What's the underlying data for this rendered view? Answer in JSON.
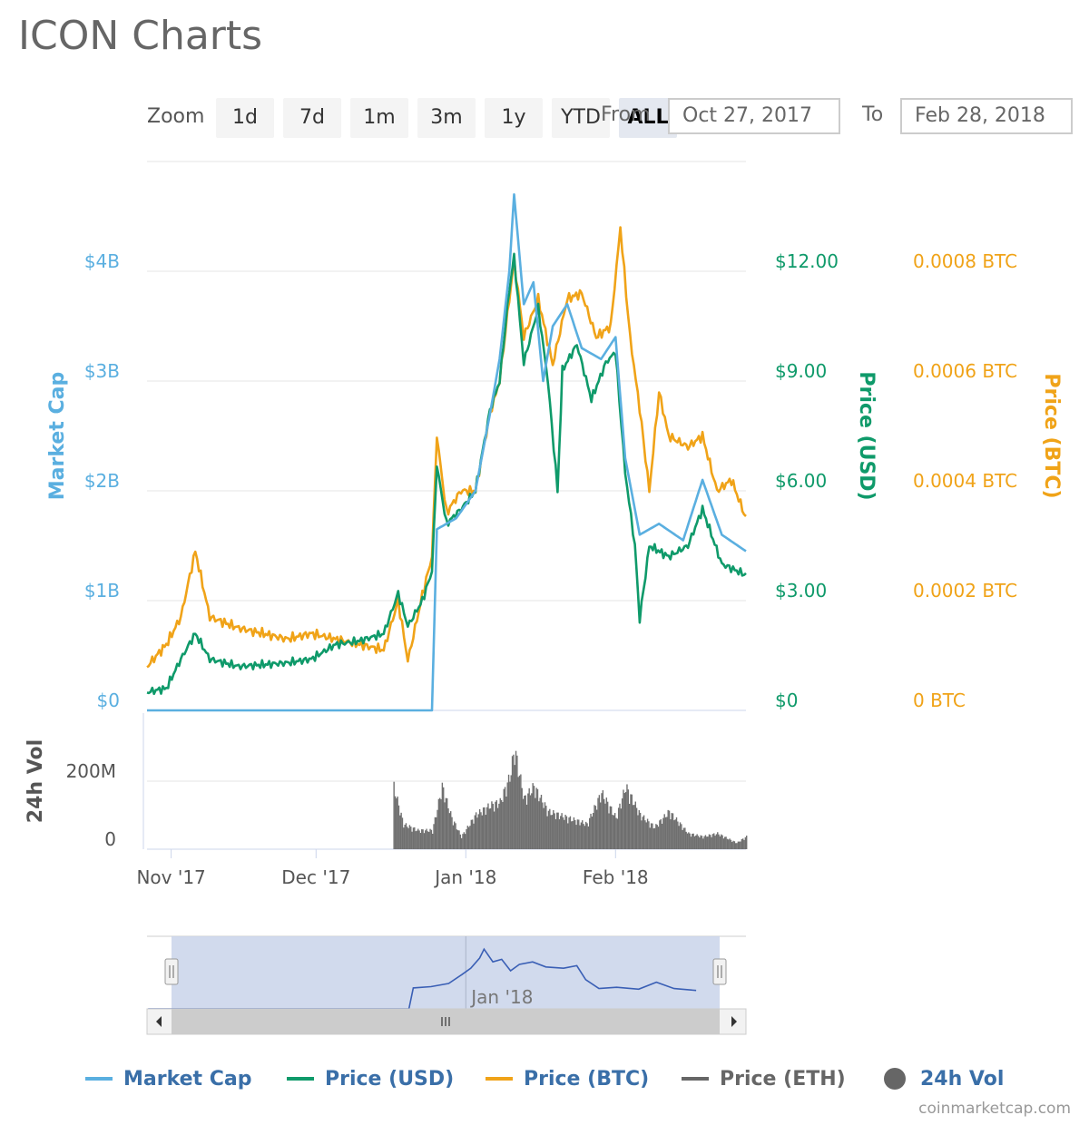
{
  "title": "ICON Charts",
  "zoom": {
    "label": "Zoom",
    "buttons": [
      "1d",
      "7d",
      "1m",
      "3m",
      "1y",
      "YTD",
      "ALL"
    ],
    "active": "ALL"
  },
  "range": {
    "from_label": "From",
    "to_label": "To",
    "from_value": "Oct 27, 2017",
    "to_value": "Feb 28, 2018"
  },
  "colors": {
    "market_cap": "#5aafe0",
    "price_usd": "#0f9a6a",
    "price_btc": "#f0a318",
    "price_eth": "#666666",
    "volume": "#6f6f6f",
    "navigator_fill": "#c9d3ea",
    "navigator_line": "#3a5fb5"
  },
  "chart_data": {
    "type": "line",
    "x_range": [
      "2017-10-27",
      "2018-02-28"
    ],
    "x_ticks": [
      {
        "date": "2017-11-01",
        "label": "Nov '17"
      },
      {
        "date": "2017-12-01",
        "label": "Dec '17"
      },
      {
        "date": "2018-01-01",
        "label": "Jan '18"
      },
      {
        "date": "2018-02-01",
        "label": "Feb '18"
      }
    ],
    "axes": {
      "market_cap": {
        "title": "Market Cap",
        "ticks": [
          "$0",
          "$1B",
          "$2B",
          "$3B",
          "$4B"
        ],
        "range": [
          0,
          5000000000
        ]
      },
      "price_usd": {
        "title": "Price (USD)",
        "ticks": [
          "$0",
          "$3.00",
          "$6.00",
          "$9.00",
          "$12.00"
        ],
        "range": [
          0,
          15
        ]
      },
      "price_btc": {
        "title": "Price (BTC)",
        "ticks": [
          "0 BTC",
          "0.0002 BTC",
          "0.0004 BTC",
          "0.0006 BTC",
          "0.0008 BTC"
        ],
        "range": [
          0,
          0.001
        ]
      },
      "volume": {
        "title": "24h Vol",
        "ticks": [
          "0",
          "200M"
        ],
        "range": [
          0,
          400000000
        ]
      }
    },
    "series": [
      {
        "name": "Market Cap",
        "axis": "market_cap",
        "points": [
          [
            "2017-10-27",
            0
          ],
          [
            "2017-12-25",
            0
          ],
          [
            "2017-12-26",
            1650000000
          ],
          [
            "2017-12-30",
            1750000000
          ],
          [
            "2018-01-03",
            2000000000
          ],
          [
            "2018-01-06",
            2700000000
          ],
          [
            "2018-01-08",
            3200000000
          ],
          [
            "2018-01-10",
            4000000000
          ],
          [
            "2018-01-11",
            4700000000
          ],
          [
            "2018-01-13",
            3700000000
          ],
          [
            "2018-01-15",
            3900000000
          ],
          [
            "2018-01-17",
            3000000000
          ],
          [
            "2018-01-19",
            3500000000
          ],
          [
            "2018-01-22",
            3700000000
          ],
          [
            "2018-01-25",
            3300000000
          ],
          [
            "2018-01-29",
            3200000000
          ],
          [
            "2018-02-01",
            3400000000
          ],
          [
            "2018-02-03",
            2300000000
          ],
          [
            "2018-02-06",
            1600000000
          ],
          [
            "2018-02-10",
            1700000000
          ],
          [
            "2018-02-15",
            1550000000
          ],
          [
            "2018-02-19",
            2100000000
          ],
          [
            "2018-02-23",
            1600000000
          ],
          [
            "2018-02-28",
            1450000000
          ]
        ]
      },
      {
        "name": "Price (USD)",
        "axis": "price_usd",
        "points": [
          [
            "2017-10-27",
            0.5
          ],
          [
            "2017-10-31",
            0.6
          ],
          [
            "2017-11-03",
            1.4
          ],
          [
            "2017-11-06",
            2.1
          ],
          [
            "2017-11-09",
            1.4
          ],
          [
            "2017-11-15",
            1.2
          ],
          [
            "2017-11-25",
            1.3
          ],
          [
            "2017-11-30",
            1.4
          ],
          [
            "2017-12-05",
            1.8
          ],
          [
            "2017-12-10",
            1.9
          ],
          [
            "2017-12-15",
            2.1
          ],
          [
            "2017-12-18",
            3.2
          ],
          [
            "2017-12-20",
            2.3
          ],
          [
            "2017-12-23",
            3.0
          ],
          [
            "2017-12-25",
            3.8
          ],
          [
            "2017-12-26",
            6.7
          ],
          [
            "2017-12-28",
            5.1
          ],
          [
            "2017-12-31",
            5.5
          ],
          [
            "2018-01-03",
            6.0
          ],
          [
            "2018-01-06",
            8.2
          ],
          [
            "2018-01-08",
            9.0
          ],
          [
            "2018-01-10",
            11.5
          ],
          [
            "2018-01-11",
            12.4
          ],
          [
            "2018-01-13",
            9.5
          ],
          [
            "2018-01-16",
            11.0
          ],
          [
            "2018-01-18",
            9.0
          ],
          [
            "2018-01-20",
            6.0
          ],
          [
            "2018-01-21",
            9.3
          ],
          [
            "2018-01-24",
            10.0
          ],
          [
            "2018-01-27",
            8.5
          ],
          [
            "2018-01-30",
            9.5
          ],
          [
            "2018-02-01",
            9.8
          ],
          [
            "2018-02-03",
            6.5
          ],
          [
            "2018-02-05",
            4.5
          ],
          [
            "2018-02-06",
            2.5
          ],
          [
            "2018-02-08",
            4.5
          ],
          [
            "2018-02-12",
            4.2
          ],
          [
            "2018-02-16",
            4.5
          ],
          [
            "2018-02-19",
            5.5
          ],
          [
            "2018-02-23",
            4.0
          ],
          [
            "2018-02-28",
            3.7
          ]
        ]
      },
      {
        "name": "Price (BTC)",
        "axis": "price_btc",
        "points": [
          [
            "2017-10-27",
            8e-05
          ],
          [
            "2017-10-31",
            0.00012
          ],
          [
            "2017-11-03",
            0.00017
          ],
          [
            "2017-11-06",
            0.00029
          ],
          [
            "2017-11-09",
            0.00017
          ],
          [
            "2017-11-15",
            0.00015
          ],
          [
            "2017-11-25",
            0.00013
          ],
          [
            "2017-11-30",
            0.00014
          ],
          [
            "2017-12-05",
            0.00013
          ],
          [
            "2017-12-10",
            0.00012
          ],
          [
            "2017-12-15",
            0.00011
          ],
          [
            "2017-12-18",
            0.0002
          ],
          [
            "2017-12-20",
            9e-05
          ],
          [
            "2017-12-23",
            0.00021
          ],
          [
            "2017-12-25",
            0.00028
          ],
          [
            "2017-12-26",
            0.0005
          ],
          [
            "2017-12-28",
            0.00036
          ],
          [
            "2017-12-31",
            0.0004
          ],
          [
            "2018-01-03",
            0.0004
          ],
          [
            "2018-01-06",
            0.00054
          ],
          [
            "2018-01-08",
            0.0006
          ],
          [
            "2018-01-10",
            0.00075
          ],
          [
            "2018-01-11",
            0.00082
          ],
          [
            "2018-01-13",
            0.00068
          ],
          [
            "2018-01-16",
            0.00075
          ],
          [
            "2018-01-19",
            0.00063
          ],
          [
            "2018-01-22",
            0.00075
          ],
          [
            "2018-01-25",
            0.00076
          ],
          [
            "2018-01-28",
            0.00068
          ],
          [
            "2018-01-31",
            0.0007
          ],
          [
            "2018-02-02",
            0.00088
          ],
          [
            "2018-02-04",
            0.00068
          ],
          [
            "2018-02-06",
            0.00055
          ],
          [
            "2018-02-08",
            0.0004
          ],
          [
            "2018-02-10",
            0.00058
          ],
          [
            "2018-02-12",
            0.0005
          ],
          [
            "2018-02-16",
            0.00048
          ],
          [
            "2018-02-19",
            0.0005
          ],
          [
            "2018-02-22",
            0.0004
          ],
          [
            "2018-02-25",
            0.00042
          ],
          [
            "2018-02-28",
            0.00035
          ]
        ]
      },
      {
        "name": "24h Vol",
        "axis": "volume",
        "points": [
          [
            "2017-12-17",
            200000000
          ],
          [
            "2017-12-19",
            80000000
          ],
          [
            "2017-12-22",
            60000000
          ],
          [
            "2017-12-25",
            60000000
          ],
          [
            "2017-12-27",
            200000000
          ],
          [
            "2017-12-29",
            100000000
          ],
          [
            "2017-12-31",
            40000000
          ],
          [
            "2018-01-03",
            110000000
          ],
          [
            "2018-01-06",
            140000000
          ],
          [
            "2018-01-08",
            150000000
          ],
          [
            "2018-01-10",
            230000000
          ],
          [
            "2018-01-11",
            320000000
          ],
          [
            "2018-01-13",
            160000000
          ],
          [
            "2018-01-15",
            200000000
          ],
          [
            "2018-01-18",
            120000000
          ],
          [
            "2018-01-22",
            100000000
          ],
          [
            "2018-01-26",
            80000000
          ],
          [
            "2018-01-29",
            180000000
          ],
          [
            "2018-02-01",
            100000000
          ],
          [
            "2018-02-03",
            200000000
          ],
          [
            "2018-02-06",
            110000000
          ],
          [
            "2018-02-09",
            70000000
          ],
          [
            "2018-02-12",
            120000000
          ],
          [
            "2018-02-16",
            50000000
          ],
          [
            "2018-02-19",
            40000000
          ],
          [
            "2018-02-22",
            50000000
          ],
          [
            "2018-02-26",
            20000000
          ],
          [
            "2018-02-28",
            40000000
          ]
        ]
      }
    ],
    "navigator": {
      "tick_label": "Jan '18"
    },
    "legend_placement": "bottom",
    "grid": true
  },
  "legend": [
    {
      "name": "Market Cap",
      "type": "line",
      "color": "#5aafe0"
    },
    {
      "name": "Price (USD)",
      "type": "line",
      "color": "#0f9a6a"
    },
    {
      "name": "Price (BTC)",
      "type": "line",
      "color": "#f0a318"
    },
    {
      "name": "Price (ETH)",
      "type": "line",
      "color": "#666666"
    },
    {
      "name": "24h Vol",
      "type": "dot",
      "color": "#666666"
    }
  ],
  "credits": "coinmarketcap.com"
}
